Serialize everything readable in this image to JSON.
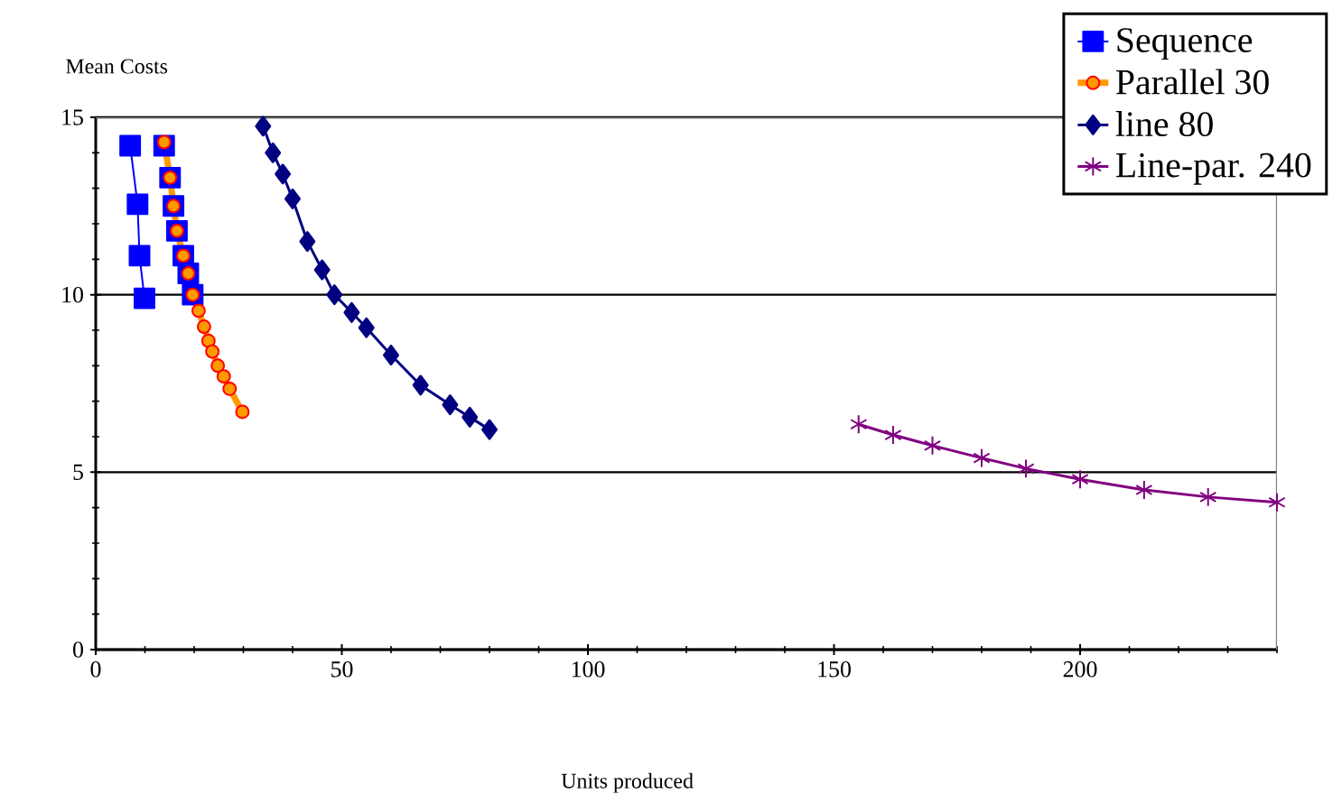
{
  "chart_data": {
    "type": "line",
    "xlabel": "Units produced",
    "ylabel": "Mean Costs",
    "xlim": [
      0,
      240
    ],
    "ylim": [
      0,
      15
    ],
    "xticks": [
      0,
      {
        "value": 10,
        "label": null
      },
      {
        "value": 20,
        "label": null
      },
      {
        "value": 30,
        "label": null
      },
      {
        "value": 40,
        "label": null
      },
      50,
      {
        "value": 60,
        "label": null
      },
      {
        "value": 70,
        "label": null
      },
      {
        "value": 80,
        "label": null
      },
      {
        "value": 90,
        "label": null
      },
      100,
      {
        "value": 110,
        "label": null
      },
      {
        "value": 120,
        "label": null
      },
      {
        "value": 130,
        "label": null
      },
      {
        "value": 140,
        "label": null
      },
      150,
      {
        "value": 160,
        "label": null
      },
      {
        "value": 170,
        "label": null
      },
      {
        "value": 180,
        "label": null
      },
      {
        "value": 190,
        "label": null
      },
      200,
      {
        "value": 210,
        "label": null
      },
      {
        "value": 220,
        "label": null
      },
      {
        "value": 230,
        "label": null
      },
      {
        "value": 240,
        "label": null
      }
    ],
    "yticks": [
      0,
      {
        "value": 1,
        "label": null
      },
      {
        "value": 2,
        "label": null
      },
      {
        "value": 3,
        "label": null
      },
      {
        "value": 4,
        "label": null
      },
      5,
      {
        "value": 6,
        "label": null
      },
      {
        "value": 7,
        "label": null
      },
      {
        "value": 8,
        "label": null
      },
      {
        "value": 9,
        "label": null
      },
      10,
      {
        "value": 11,
        "label": null
      },
      {
        "value": 12,
        "label": null
      },
      {
        "value": 13,
        "label": null
      },
      {
        "value": 14,
        "label": null
      },
      15
    ],
    "grid": "y",
    "legend": "top right",
    "series": [
      {
        "name": "Sequence",
        "color": "#0000ff",
        "marker": "square",
        "x": [
          7,
          8.5,
          8.9,
          9.9,
          null,
          13.9,
          15.1,
          15.8,
          16.5,
          17.8,
          18.8,
          19.7
        ],
        "values": [
          14.2,
          12.55,
          11.1,
          9.9,
          null,
          14.2,
          13.3,
          12.5,
          11.8,
          11.1,
          10.6,
          10.0
        ]
      },
      {
        "name": "Parallel 30",
        "color": "#ff9900",
        "marker": "circle",
        "x": [
          13.9,
          15.1,
          15.8,
          16.5,
          17.8,
          18.8,
          19.7,
          20.9,
          22,
          22.9,
          23.7,
          24.8,
          26,
          27.2,
          29.8
        ],
        "values": [
          14.3,
          13.3,
          12.5,
          11.8,
          11.1,
          10.6,
          10.0,
          9.55,
          9.1,
          8.7,
          8.4,
          8.0,
          7.7,
          7.35,
          6.7
        ]
      },
      {
        "name": "line 80",
        "color": "#000080",
        "marker": "diamond",
        "x": [
          34,
          36,
          38,
          40,
          43,
          46,
          48.5,
          52,
          55,
          60,
          66,
          72,
          76,
          80
        ],
        "values": [
          14.75,
          14.0,
          13.4,
          12.7,
          11.5,
          10.7,
          10.0,
          9.5,
          9.07,
          8.3,
          7.45,
          6.9,
          6.55,
          6.2
        ]
      },
      {
        "name": "Line-par. 240",
        "color": "#800080",
        "marker": "cross",
        "x": [
          155,
          162,
          170,
          180,
          189,
          200,
          213,
          226,
          240
        ],
        "values": [
          6.35,
          6.05,
          5.75,
          5.4,
          5.1,
          4.8,
          4.5,
          4.3,
          4.15
        ]
      }
    ]
  }
}
